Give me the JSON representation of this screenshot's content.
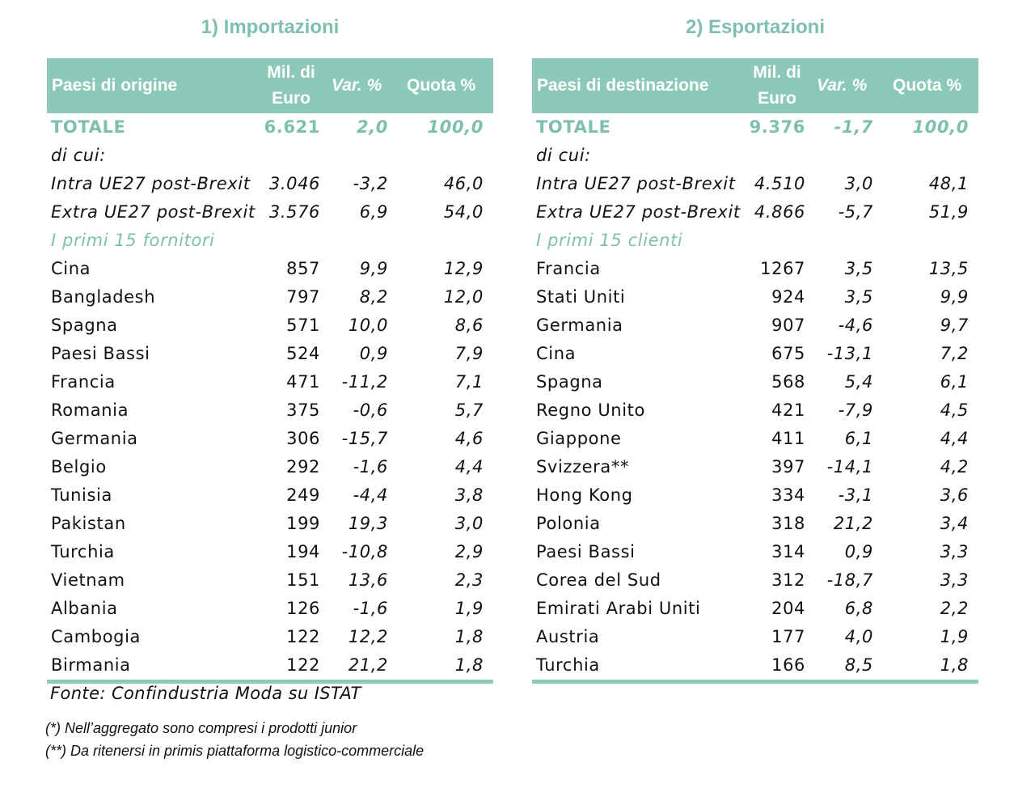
{
  "imports": {
    "title": "1) Importazioni",
    "headers": {
      "country": "Paesi di origine",
      "mil_line1": "Mil. di",
      "mil_line2": "Euro",
      "var": "Var. %",
      "quota": "Quota %"
    },
    "total": {
      "label": "TOTALE",
      "mil": "6.621",
      "var": "2,0",
      "quota": "100,0"
    },
    "dicui": "di cui:",
    "intra": {
      "label": "Intra UE27 post-Brexit",
      "mil": "3.046",
      "var": "-3,2",
      "quota": "46,0"
    },
    "extra": {
      "label": "Extra UE27 post-Brexit",
      "mil": "3.576",
      "var": "6,9",
      "quota": "54,0"
    },
    "top_label": "I primi 15 fornitori",
    "rows": [
      {
        "country": "Cina",
        "mil": "857",
        "var": "9,9",
        "quota": "12,9"
      },
      {
        "country": "Bangladesh",
        "mil": "797",
        "var": "8,2",
        "quota": "12,0"
      },
      {
        "country": "Spagna",
        "mil": "571",
        "var": "10,0",
        "quota": "8,6"
      },
      {
        "country": "Paesi Bassi",
        "mil": "524",
        "var": "0,9",
        "quota": "7,9"
      },
      {
        "country": "Francia",
        "mil": "471",
        "var": "-11,2",
        "quota": "7,1"
      },
      {
        "country": "Romania",
        "mil": "375",
        "var": "-0,6",
        "quota": "5,7"
      },
      {
        "country": "Germania",
        "mil": "306",
        "var": "-15,7",
        "quota": "4,6"
      },
      {
        "country": "Belgio",
        "mil": "292",
        "var": "-1,6",
        "quota": "4,4"
      },
      {
        "country": "Tunisia",
        "mil": "249",
        "var": "-4,4",
        "quota": "3,8"
      },
      {
        "country": "Pakistan",
        "mil": "199",
        "var": "19,3",
        "quota": "3,0"
      },
      {
        "country": "Turchia",
        "mil": "194",
        "var": "-10,8",
        "quota": "2,9"
      },
      {
        "country": "Vietnam",
        "mil": "151",
        "var": "13,6",
        "quota": "2,3"
      },
      {
        "country": "Albania",
        "mil": "126",
        "var": "-1,6",
        "quota": "1,9"
      },
      {
        "country": "Cambogia",
        "mil": "122",
        "var": "12,2",
        "quota": "1,8"
      },
      {
        "country": "Birmania",
        "mil": "122",
        "var": "21,2",
        "quota": "1,8"
      }
    ]
  },
  "exports": {
    "title": "2) Esportazioni",
    "headers": {
      "country": "Paesi di destinazione",
      "mil_line1": "Mil. di",
      "mil_line2": "Euro",
      "var": "Var. %",
      "quota": "Quota %"
    },
    "total": {
      "label": "TOTALE",
      "mil": "9.376",
      "var": "-1,7",
      "quota": "100,0"
    },
    "dicui": "di cui:",
    "intra": {
      "label": "Intra UE27 post-Brexit",
      "mil": "4.510",
      "var": "3,0",
      "quota": "48,1"
    },
    "extra": {
      "label": "Extra UE27 post-Brexit",
      "mil": "4.866",
      "var": "-5,7",
      "quota": "51,9"
    },
    "top_label": "I primi 15 clienti",
    "rows": [
      {
        "country": "Francia",
        "mil": "1267",
        "var": "3,5",
        "quota": "13,5"
      },
      {
        "country": "Stati Uniti",
        "mil": "924",
        "var": "3,5",
        "quota": "9,9"
      },
      {
        "country": "Germania",
        "mil": "907",
        "var": "-4,6",
        "quota": "9,7"
      },
      {
        "country": "Cina",
        "mil": "675",
        "var": "-13,1",
        "quota": "7,2"
      },
      {
        "country": "Spagna",
        "mil": "568",
        "var": "5,4",
        "quota": "6,1"
      },
      {
        "country": "Regno Unito",
        "mil": "421",
        "var": "-7,9",
        "quota": "4,5"
      },
      {
        "country": "Giappone",
        "mil": "411",
        "var": "6,1",
        "quota": "4,4"
      },
      {
        "country": "Svizzera**",
        "mil": "397",
        "var": "-14,1",
        "quota": "4,2"
      },
      {
        "country": "Hong Kong",
        "mil": "334",
        "var": "-3,1",
        "quota": "3,6"
      },
      {
        "country": "Polonia",
        "mil": "318",
        "var": "21,2",
        "quota": "3,4"
      },
      {
        "country": "Paesi Bassi",
        "mil": "314",
        "var": "0,9",
        "quota": "3,3"
      },
      {
        "country": "Corea del Sud",
        "mil": "312",
        "var": "-18,7",
        "quota": "3,3"
      },
      {
        "country": "Emirati Arabi Uniti",
        "mil": "204",
        "var": "6,8",
        "quota": "2,2"
      },
      {
        "country": "Austria",
        "mil": "177",
        "var": "4,0",
        "quota": "1,9"
      },
      {
        "country": "Turchia",
        "mil": "166",
        "var": "8,5",
        "quota": "1,8"
      }
    ]
  },
  "source": "Fonte:  Confindustria Moda su ISTAT",
  "notes": [
    "(*) Nell’aggregato sono compresi i prodotti junior",
    "(**) Da ritenersi in primis piattaforma logistico-commerciale"
  ],
  "colors": {
    "accent": "#8cc9b8",
    "accent_text": "#7fbfb0"
  }
}
